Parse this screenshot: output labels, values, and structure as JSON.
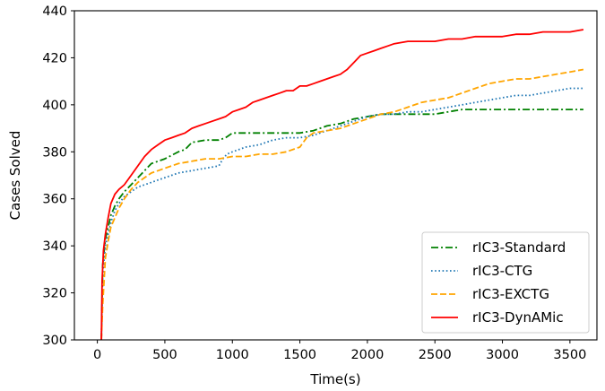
{
  "chart_data": {
    "type": "line",
    "title": "",
    "xlabel": "Time(s)",
    "ylabel": "Cases Solved",
    "xlim": [
      -170,
      3700
    ],
    "ylim": [
      300,
      440
    ],
    "xticks": [
      0,
      500,
      1000,
      1500,
      2000,
      2500,
      3000,
      3500
    ],
    "yticks": [
      300,
      320,
      340,
      360,
      380,
      400,
      420,
      440
    ],
    "grid": false,
    "legend_position": "bottom-right",
    "series": [
      {
        "name": "rIC3-Standard",
        "color": "#008000",
        "dash": "dashdot",
        "x": [
          30,
          40,
          60,
          80,
          100,
          130,
          160,
          200,
          250,
          300,
          350,
          400,
          450,
          500,
          600,
          650,
          700,
          800,
          900,
          950,
          1000,
          1050,
          1100,
          1200,
          1300,
          1400,
          1500,
          1600,
          1700,
          1800,
          1900,
          2000,
          2100,
          2200,
          2300,
          2400,
          2500,
          2600,
          2700,
          2800,
          2900,
          3000,
          3200,
          3400,
          3600
        ],
        "y": [
          300,
          332,
          343,
          348,
          353,
          357,
          360,
          363,
          366,
          369,
          372,
          375,
          376,
          377,
          380,
          381,
          384,
          385,
          385,
          386,
          388,
          388,
          388,
          388,
          388,
          388,
          388,
          389,
          391,
          392,
          394,
          395,
          396,
          396,
          396,
          396,
          396,
          397,
          398,
          398,
          398,
          398,
          398,
          398,
          398
        ]
      },
      {
        "name": "rIC3-CTG",
        "color": "#1f77b4",
        "dash": "dotted",
        "x": [
          30,
          40,
          60,
          80,
          100,
          130,
          160,
          200,
          250,
          300,
          400,
          450,
          500,
          600,
          700,
          800,
          900,
          930,
          960,
          1000,
          1100,
          1200,
          1300,
          1400,
          1500,
          1600,
          1700,
          1800,
          1900,
          2000,
          2100,
          2200,
          2300,
          2400,
          2500,
          2600,
          2700,
          2800,
          2900,
          3000,
          3100,
          3200,
          3300,
          3400,
          3500,
          3600
        ],
        "y": [
          300,
          328,
          340,
          345,
          350,
          355,
          358,
          361,
          363,
          365,
          367,
          368,
          369,
          371,
          372,
          373,
          374,
          377,
          379,
          380,
          382,
          383,
          385,
          386,
          386,
          387,
          389,
          391,
          393,
          395,
          396,
          396,
          397,
          397,
          398,
          399,
          400,
          401,
          402,
          403,
          404,
          404,
          405,
          406,
          407,
          407
        ]
      },
      {
        "name": "rIC3-EXCTG",
        "color": "#ffa500",
        "dash": "dashed",
        "x": [
          30,
          40,
          60,
          80,
          100,
          130,
          160,
          200,
          250,
          300,
          350,
          400,
          450,
          500,
          600,
          700,
          800,
          900,
          1000,
          1100,
          1200,
          1300,
          1400,
          1500,
          1550,
          1600,
          1700,
          1800,
          1900,
          2000,
          2100,
          2200,
          2300,
          2400,
          2500,
          2600,
          2700,
          2800,
          2900,
          3000,
          3100,
          3200,
          3300,
          3400,
          3500,
          3600
        ],
        "y": [
          300,
          315,
          335,
          342,
          348,
          352,
          356,
          360,
          364,
          367,
          369,
          371,
          372,
          373,
          375,
          376,
          377,
          377,
          378,
          378,
          379,
          379,
          380,
          382,
          386,
          388,
          389,
          390,
          392,
          394,
          396,
          397,
          399,
          401,
          402,
          403,
          405,
          407,
          409,
          410,
          411,
          411,
          412,
          413,
          414,
          415
        ]
      },
      {
        "name": "rIC3-DynAMic",
        "color": "#ff0000",
        "dash": "solid",
        "x": [
          30,
          35,
          45,
          60,
          80,
          100,
          130,
          160,
          200,
          250,
          300,
          350,
          400,
          450,
          500,
          550,
          600,
          650,
          700,
          750,
          800,
          850,
          900,
          950,
          1000,
          1050,
          1100,
          1150,
          1200,
          1250,
          1300,
          1350,
          1400,
          1450,
          1500,
          1550,
          1600,
          1650,
          1700,
          1750,
          1800,
          1850,
          1900,
          1950,
          2000,
          2050,
          2100,
          2150,
          2200,
          2300,
          2400,
          2500,
          2600,
          2700,
          2800,
          2900,
          3000,
          3100,
          3200,
          3300,
          3400,
          3500,
          3600
        ],
        "y": [
          300,
          325,
          338,
          345,
          352,
          358,
          362,
          364,
          366,
          370,
          374,
          378,
          381,
          383,
          385,
          386,
          387,
          388,
          390,
          391,
          392,
          393,
          394,
          395,
          397,
          398,
          399,
          401,
          402,
          403,
          404,
          405,
          406,
          406,
          408,
          408,
          409,
          410,
          411,
          412,
          413,
          415,
          418,
          421,
          422,
          423,
          424,
          425,
          426,
          427,
          427,
          427,
          428,
          428,
          429,
          429,
          429,
          430,
          430,
          431,
          431,
          431,
          432
        ]
      }
    ]
  }
}
